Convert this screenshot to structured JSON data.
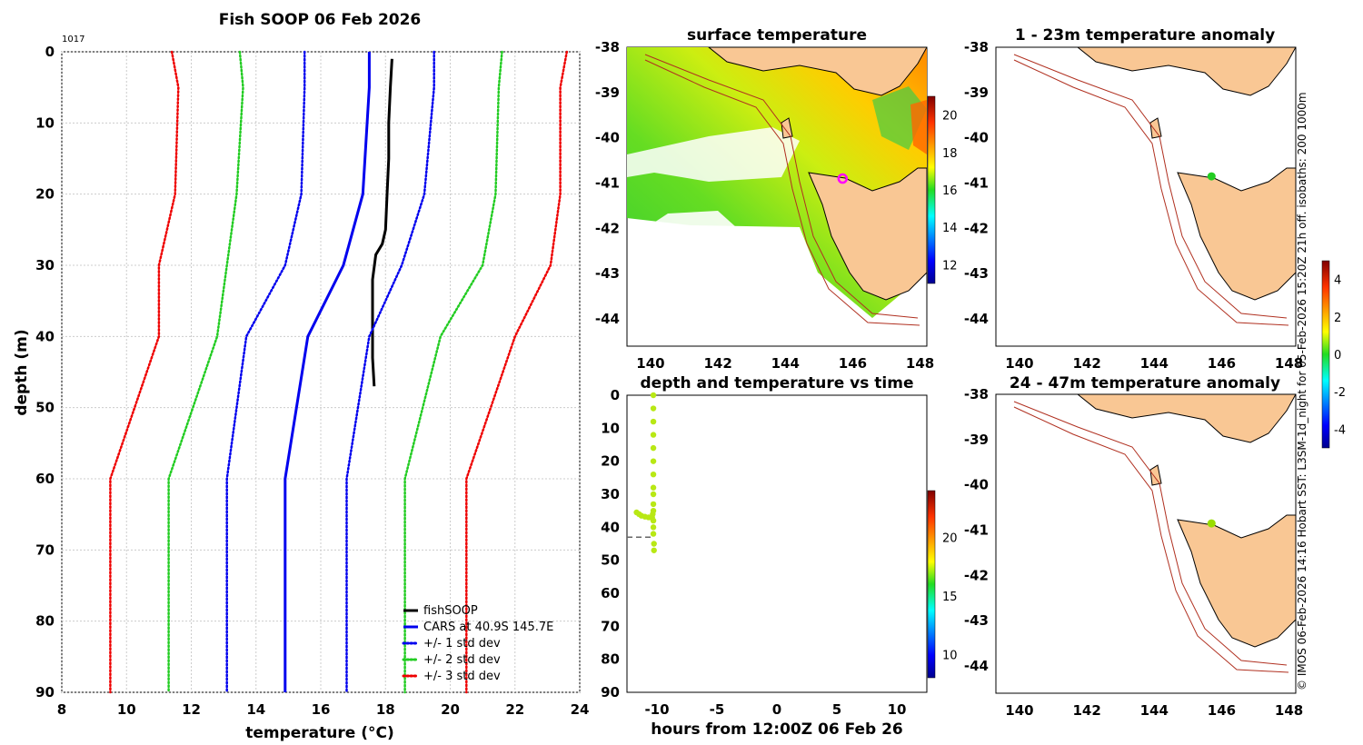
{
  "chart_data": [
    {
      "type": "line",
      "title": "Fish SOOP 06 Feb 2026",
      "corner_label": "1017",
      "xlabel": "temperature",
      "xlabel_unit": "(°C)",
      "ylabel": "depth (m)",
      "xlim": [
        8,
        24
      ],
      "ylim": [
        90,
        0
      ],
      "xticks": [
        "8",
        "10",
        "12",
        "14",
        "16",
        "18",
        "20",
        "22",
        "24"
      ],
      "yticks": [
        "0",
        "10",
        "20",
        "30",
        "40",
        "50",
        "60",
        "70",
        "80",
        "90"
      ],
      "grid": true,
      "legend": [
        "fishSOOP",
        "CARS at 40.9S 145.7E",
        "+/- 1 std dev",
        "+/- 2 std dev",
        "+/- 3 std dev"
      ],
      "legend_position": "bottom-right",
      "depths": [
        0,
        5,
        20,
        30,
        40,
        60,
        90
      ],
      "series": [
        {
          "name": "fishSOOP",
          "color": "#000000",
          "style": "solid",
          "x": [
            18.2,
            18.15,
            18.1,
            18.1,
            18.05,
            18.0,
            17.9,
            17.7,
            17.6,
            17.6,
            17.6,
            17.65
          ],
          "y": [
            1,
            5,
            10,
            15,
            20,
            25,
            27,
            28.5,
            32,
            37,
            43,
            47
          ]
        },
        {
          "name": "CARS",
          "color": "#0000ee",
          "style": "solid",
          "x": [
            17.5,
            17.5,
            17.3,
            16.7,
            15.6,
            14.9,
            14.9
          ]
        },
        {
          "name": "-1 std",
          "color": "#0000ee",
          "style": "dotted",
          "x": [
            15.5,
            15.5,
            15.4,
            14.9,
            13.7,
            13.1,
            13.1
          ]
        },
        {
          "name": "+1 std",
          "color": "#0000ee",
          "style": "dotted",
          "x": [
            19.5,
            19.5,
            19.2,
            18.5,
            17.5,
            16.8,
            16.8
          ]
        },
        {
          "name": "-2 std",
          "color": "#22cc22",
          "style": "dotted",
          "x": [
            13.5,
            13.6,
            13.4,
            13.1,
            12.8,
            11.3,
            11.3
          ]
        },
        {
          "name": "+2 std",
          "color": "#22cc22",
          "style": "dotted",
          "x": [
            21.6,
            21.5,
            21.4,
            21.0,
            19.7,
            18.6,
            18.6
          ]
        },
        {
          "name": "-3 std",
          "color": "#ee0000",
          "style": "dotted",
          "x": [
            11.4,
            11.6,
            11.5,
            11.0,
            11.0,
            9.5,
            9.5
          ]
        },
        {
          "name": "+3 std",
          "color": "#ee0000",
          "style": "dotted",
          "x": [
            23.6,
            23.4,
            23.4,
            23.1,
            22.0,
            20.5,
            20.5
          ]
        }
      ]
    },
    {
      "type": "heatmap",
      "title": "surface temperature",
      "xlim": [
        139.3,
        148.2
      ],
      "ylim": [
        -44.6,
        -38
      ],
      "xticks": [
        "140",
        "142",
        "144",
        "146",
        "148"
      ],
      "yticks": [
        "-38",
        "-39",
        "-40",
        "-41",
        "-42",
        "-43",
        "-44"
      ],
      "colorbar_ticks": [
        "12",
        "14",
        "16",
        "18",
        "20"
      ],
      "colorbar_range": [
        11,
        21
      ],
      "marker": {
        "lon": 145.7,
        "lat": -40.9,
        "color": "#ff00ff"
      }
    },
    {
      "type": "scatter",
      "title": "depth and temperature vs time",
      "xlabel": "hours from 12:00Z 06 Feb 26",
      "xlim": [
        -12.5,
        12.5
      ],
      "ylim": [
        90,
        0
      ],
      "xticks": [
        "-10",
        "-5",
        "0",
        "5",
        "10"
      ],
      "yticks": [
        "0",
        "10",
        "20",
        "30",
        "40",
        "50",
        "60",
        "70",
        "80",
        "90"
      ],
      "colorbar_ticks": [
        "10",
        "15",
        "20"
      ],
      "colorbar_range": [
        8,
        24
      ],
      "reference_depth": 43,
      "points": {
        "t": [
          -10.3,
          -10.3,
          -10.3,
          -10.3,
          -10.3,
          -10.3,
          -10.3,
          -10.3,
          -10.3,
          -10.3,
          -10.3,
          -10.35,
          -10.4,
          -10.5,
          -10.7,
          -11.0,
          -11.3,
          -11.5,
          -11.7,
          -10.3,
          -10.3,
          -10.3,
          -10.25,
          -10.25
        ],
        "depth": [
          0,
          4,
          8,
          12,
          16,
          20,
          24,
          28,
          30,
          33,
          35,
          36,
          37,
          37,
          37,
          36.8,
          36.5,
          36,
          35.5,
          38,
          40,
          42,
          45,
          47
        ]
      }
    },
    {
      "type": "heatmap",
      "title": "1 - 23m temperature anomaly",
      "xlim": [
        139.3,
        148.2
      ],
      "ylim": [
        -44.6,
        -38
      ],
      "xticks": [
        "140",
        "142",
        "144",
        "146",
        "148"
      ],
      "yticks": [
        "-38",
        "-39",
        "-40",
        "-41",
        "-42",
        "-43",
        "-44"
      ],
      "marker": {
        "lon": 145.7,
        "lat": -40.85,
        "color": "#22cc22"
      }
    },
    {
      "type": "heatmap",
      "title": "24 - 47m temperature anomaly",
      "xlim": [
        139.3,
        148.2
      ],
      "ylim": [
        -44.6,
        -38
      ],
      "xticks": [
        "140",
        "142",
        "144",
        "146",
        "148"
      ],
      "yticks": [
        "-38",
        "-39",
        "-40",
        "-41",
        "-42",
        "-43",
        "-44"
      ],
      "colorbar_ticks": [
        "-4",
        "-2",
        "0",
        "2",
        "4"
      ],
      "colorbar_range": [
        -5,
        5
      ],
      "marker": {
        "lon": 145.7,
        "lat": -40.85,
        "color": "#99dd00"
      }
    }
  ],
  "credit_text": "© IMOS 06-Feb-2026 14:16 Hobart SST: L3SM-1d_night for 05-Feb-2026 15:20Z 21h off. isobaths: 200  1000m"
}
